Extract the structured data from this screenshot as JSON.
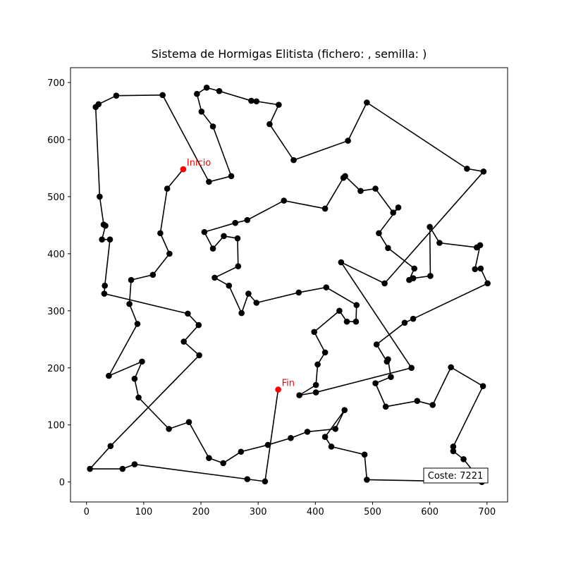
{
  "chart_data": {
    "type": "line",
    "title": "Sistema de Hormigas Elitista (fichero: , semilla: )",
    "x": [
      169,
      141,
      129,
      145,
      116,
      78,
      75,
      89,
      39,
      97,
      84,
      91,
      144,
      179,
      214,
      239,
      270,
      317,
      357,
      386,
      435,
      451,
      417,
      428,
      486,
      490,
      691,
      659,
      641,
      641,
      693,
      637,
      605,
      578,
      523,
      505,
      532,
      527,
      525,
      507,
      556,
      571,
      701,
      689,
      679,
      688,
      682,
      617,
      600,
      601,
      571,
      564,
      573,
      527,
      511,
      545,
      536,
      505,
      479,
      452,
      449,
      417,
      345,
      281,
      260,
      206,
      221,
      240,
      264,
      265,
      224,
      249,
      271,
      283,
      297,
      371,
      419,
      472,
      471,
      455,
      442,
      398,
      417,
      404,
      401,
      372,
      401,
      568,
      445,
      521,
      694,
      665,
      490,
      457,
      362,
      320,
      336,
      297,
      288,
      232,
      210,
      193,
      201,
      221,
      253,
      214,
      133,
      52,
      21,
      16,
      23,
      30,
      33,
      27,
      41,
      32,
      31,
      177,
      196,
      170,
      197,
      42,
      6,
      63,
      84,
      281,
      312,
      335
    ],
    "values": [
      548,
      514,
      436,
      400,
      363,
      354,
      312,
      277,
      186,
      211,
      181,
      148,
      93,
      105,
      42,
      33,
      53,
      65,
      77,
      88,
      93,
      126,
      79,
      62,
      48,
      4,
      0,
      40,
      54,
      62,
      168,
      201,
      135,
      142,
      132,
      173,
      184,
      215,
      211,
      241,
      279,
      286,
      348,
      374,
      373,
      415,
      411,
      419,
      447,
      361,
      357,
      354,
      374,
      410,
      436,
      481,
      472,
      514,
      510,
      536,
      533,
      479,
      493,
      459,
      454,
      438,
      409,
      431,
      427,
      378,
      358,
      344,
      296,
      330,
      314,
      332,
      341,
      310,
      281,
      281,
      300,
      263,
      227,
      206,
      170,
      152,
      157,
      200,
      385,
      348,
      544,
      549,
      665,
      598,
      564,
      627,
      661,
      667,
      668,
      685,
      691,
      680,
      649,
      623,
      536,
      526,
      678,
      677,
      662,
      657,
      500,
      451,
      449,
      425,
      425,
      344,
      330,
      295,
      275,
      246,
      222,
      63,
      23,
      23,
      31,
      5,
      1,
      162
    ],
    "color": "#000000",
    "highlight_color": "#ff0000",
    "start_label": "Inicio",
    "end_label": "Fin",
    "annotation": "Coste: 7221",
    "xlim": [
      -28,
      736
    ],
    "ylim": [
      -35,
      726
    ],
    "xticks": [
      0,
      100,
      200,
      300,
      400,
      500,
      600,
      700
    ],
    "yticks": [
      0,
      100,
      200,
      300,
      400,
      500,
      600,
      700
    ]
  }
}
